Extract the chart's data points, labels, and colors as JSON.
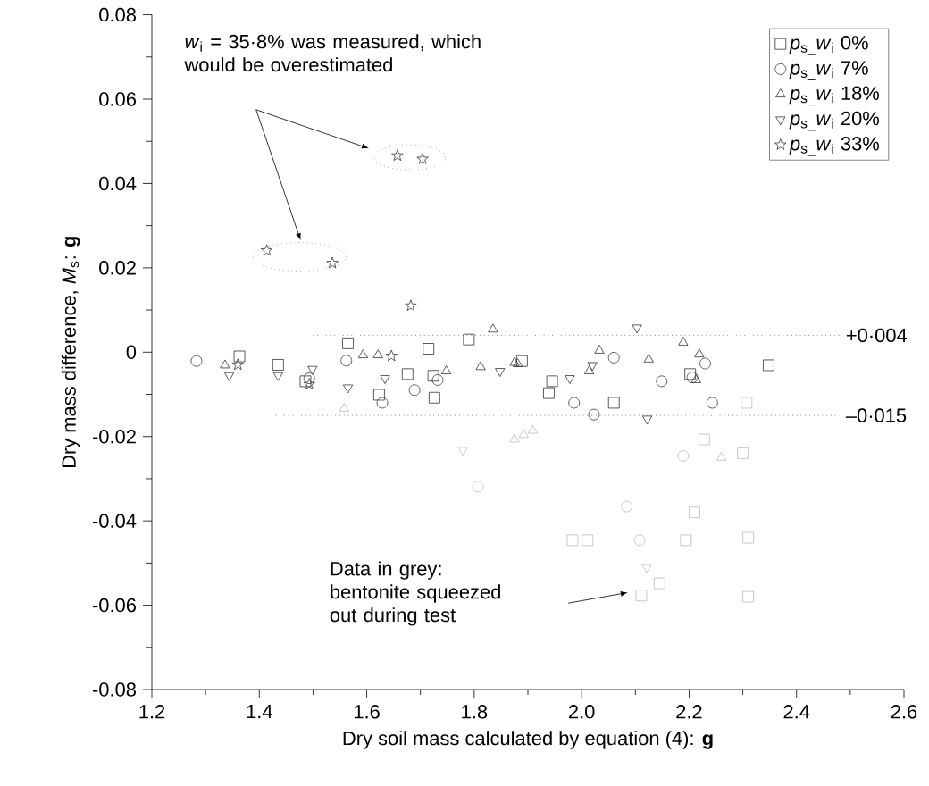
{
  "chart_data": {
    "type": "scatter",
    "xlabel": "Dry soil mass calculated by equation (4): **g**",
    "ylabel": "Dry mass difference, *M*$_{s}$: **g**",
    "xlim": [
      1.2,
      2.6
    ],
    "xticks": [
      1.2,
      1.4,
      1.6,
      1.8,
      {
        "value": 2.0,
        "label": "2.0"
      },
      2.2,
      2.4,
      2.6
    ],
    "ylim": [
      -0.08,
      0.08
    ],
    "yticks": [
      -0.08,
      -0.06,
      -0.04,
      -0.02,
      0,
      0.02,
      0.04,
      0.06,
      0.08
    ],
    "legend": "top right",
    "series": [
      {
        "name": "*p*$_{s_}$*w*$_{i}$ 0%",
        "color": "#333333",
        "marker": "square",
        "x": [
          1.363,
          1.435,
          1.486,
          1.565,
          1.623,
          1.676,
          1.715,
          1.724,
          1.726,
          1.79,
          1.889,
          1.945,
          1.939,
          2.06,
          2.202,
          2.348
        ],
        "values": [
          -0.001,
          -0.003,
          -0.0069,
          0.0021,
          -0.0101,
          -0.0052,
          0.0008,
          -0.0056,
          -0.0108,
          0.003,
          -0.0021,
          -0.0069,
          -0.0097,
          -0.012,
          -0.0052,
          -0.0031
        ]
      },
      {
        "name": "*p*$_{s_}$*w*$_{i}$ 7%",
        "color": "#333333",
        "marker": "circle",
        "x": [
          1.283,
          1.493,
          1.562,
          1.629,
          1.689,
          1.732,
          1.986,
          2.023,
          2.06,
          2.149,
          2.206,
          2.23,
          2.243
        ],
        "values": [
          -0.0021,
          -0.0062,
          -0.002,
          -0.012,
          -0.009,
          -0.0066,
          -0.012,
          -0.0148,
          -0.0013,
          -0.0069,
          -0.006,
          -0.0027,
          -0.012
        ]
      },
      {
        "name": "*p*$_{s_}$*w*$_{i}$ 18%",
        "color": "#333333",
        "marker": "triangle",
        "x": [
          1.336,
          1.593,
          1.621,
          1.748,
          1.812,
          1.835,
          1.875,
          1.881,
          2.014,
          2.033,
          2.125,
          2.189,
          2.213,
          2.219
        ],
        "values": [
          -0.0031,
          -0.0007,
          -0.0007,
          -0.0045,
          -0.0035,
          0.0054,
          -0.0025,
          -0.0028,
          -0.0045,
          0.0004,
          -0.0017,
          0.0023,
          -0.0066,
          -0.0005
        ]
      },
      {
        "name": "*p*$_{s_}$*w*$_{i}$ 20%",
        "color": "#333333",
        "marker": "triangle_down",
        "x": [
          1.344,
          1.435,
          1.499,
          1.565,
          1.634,
          1.848,
          1.978,
          2.02,
          2.103,
          2.122
        ],
        "values": [
          -0.0055,
          -0.0055,
          -0.004,
          -0.0084,
          -0.0062,
          -0.0045,
          -0.0062,
          -0.0031,
          0.0058,
          -0.0158
        ]
      },
      {
        "name": "*p*$_{s_}$*w*$_{i}$ 33%",
        "color": "#333333",
        "marker": "star",
        "x": [
          1.36,
          1.414,
          1.493,
          1.536,
          1.646,
          1.657,
          1.682,
          1.704
        ],
        "values": [
          -0.003,
          0.0241,
          -0.0076,
          0.0211,
          -0.0009,
          0.0466,
          0.011,
          0.0458
        ]
      },
      {
        "color": "#bbbbbb",
        "marker": "square",
        "x": [
          1.983,
          2.011,
          2.111,
          2.145,
          2.194,
          2.21,
          2.228,
          2.307,
          2.3,
          2.31,
          2.31
        ],
        "values": [
          -0.0446,
          -0.0446,
          -0.0577,
          -0.0548,
          -0.0446,
          -0.038,
          -0.0207,
          -0.012,
          -0.024,
          -0.044,
          -0.058
        ]
      },
      {
        "color": "#bbbbbb",
        "marker": "circle",
        "x": [
          1.807,
          2.084,
          2.108,
          2.189
        ],
        "values": [
          -0.0319,
          -0.0366,
          -0.0446,
          -0.0246
        ]
      },
      {
        "color": "#bbbbbb",
        "marker": "triangle",
        "x": [
          1.558,
          1.875,
          1.892,
          1.909,
          2.26
        ],
        "values": [
          -0.0134,
          -0.0207,
          -0.0196,
          -0.0186,
          -0.025
        ]
      },
      {
        "color": "#bbbbbb",
        "marker": "triangle_down",
        "x": [
          1.779,
          2.121
        ],
        "values": [
          -0.0232,
          -0.051
        ]
      }
    ],
    "ref_lines": [
      {
        "axis": "y",
        "value": 0.004,
        "label": "+0·004",
        "line_style": "dotted"
      },
      {
        "axis": "y",
        "value": -0.015,
        "label": "–0·015",
        "line_style": "dotted"
      }
    ],
    "annotations": [
      "*w*$_{i}$ = 35·8% was measured, which would be overestimated",
      "Data in grey: bentonite squeezed out during test"
    ]
  }
}
